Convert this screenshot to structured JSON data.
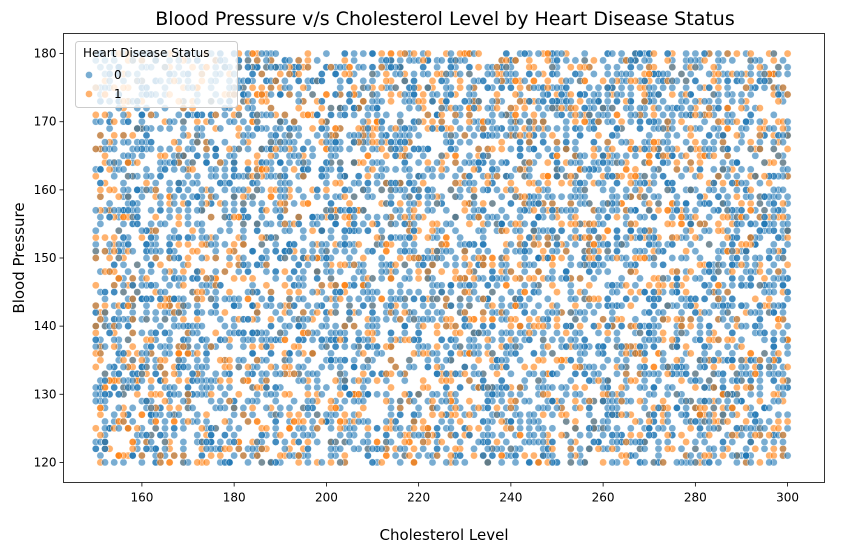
{
  "chart_data": {
    "type": "scatter",
    "title": "Blood Pressure v/s Cholesterol Level by Heart Disease Status",
    "xlabel": "Cholesterol Level",
    "ylabel": "Blood Pressure",
    "xlim": [
      143,
      308
    ],
    "ylim": [
      117.05,
      182.95
    ],
    "xticks": [
      160,
      180,
      200,
      220,
      240,
      260,
      280,
      300
    ],
    "yticks": [
      120,
      130,
      140,
      150,
      160,
      170,
      180
    ],
    "x_range": [
      150,
      300
    ],
    "y_range": [
      120,
      180
    ],
    "grid": false,
    "legend": {
      "title": "Heart Disease Status",
      "placement": "top-left",
      "entries": [
        {
          "label": "0",
          "color": "#1f77b4"
        },
        {
          "label": "1",
          "color": "#ff7f0e"
        }
      ]
    },
    "series": [
      {
        "label": "0",
        "color": "#1f77b4",
        "share": 0.7
      },
      {
        "label": "1",
        "color": "#ff7f0e",
        "share": 0.3
      }
    ],
    "point_count": 6800,
    "marker_alpha": 0.6
  }
}
